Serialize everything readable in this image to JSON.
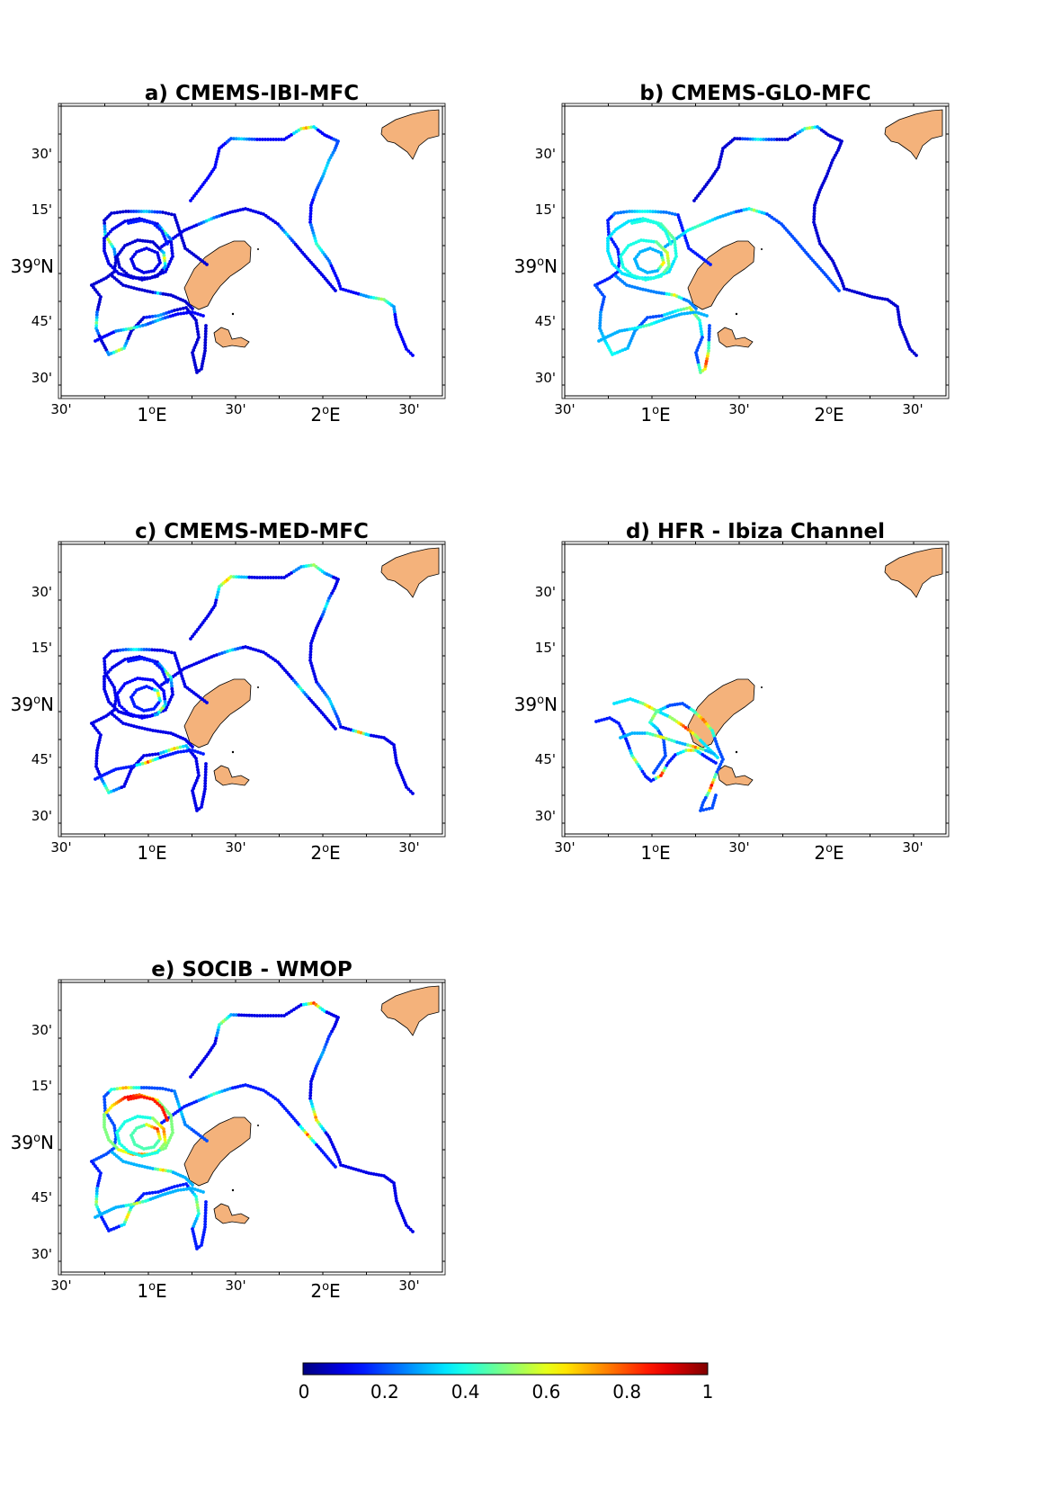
{
  "panels": [
    {
      "id": "a",
      "title": "a) CMEMS-IBI-MFC"
    },
    {
      "id": "b",
      "title": "b) CMEMS-GLO-MFC"
    },
    {
      "id": "c",
      "title": "c) CMEMS-MED-MFC"
    },
    {
      "id": "d",
      "title": "d) HFR - Ibiza Channel"
    },
    {
      "id": "e",
      "title": "e) SOCIB - WMOP"
    }
  ],
  "axes": {
    "x_ticks": [
      {
        "label": "30'",
        "deg": "",
        "unit": ""
      },
      {
        "label": "",
        "deg": "1",
        "unit": "E"
      },
      {
        "label": "30'",
        "deg": "",
        "unit": ""
      },
      {
        "label": "",
        "deg": "2",
        "unit": "E"
      },
      {
        "label": "30'",
        "deg": "",
        "unit": ""
      }
    ],
    "y_ticks": [
      {
        "label": "30'",
        "deg": "",
        "unit": ""
      },
      {
        "label": "15'",
        "deg": "",
        "unit": ""
      },
      {
        "label": "",
        "deg": "39",
        "unit": "N"
      },
      {
        "label": "45'",
        "deg": "",
        "unit": ""
      },
      {
        "label": "30'",
        "deg": "",
        "unit": ""
      }
    ],
    "degree_symbol": "o"
  },
  "colorbar": {
    "colormap": "jet",
    "min": 0,
    "max": 1,
    "tick_labels": [
      "0",
      "0.2",
      "0.4",
      "0.6",
      "0.8",
      "1"
    ]
  },
  "colors": {
    "land": "#f4b27b",
    "coast": "#000000",
    "traj_low": "#00008f",
    "traj_high": "#800000"
  }
}
